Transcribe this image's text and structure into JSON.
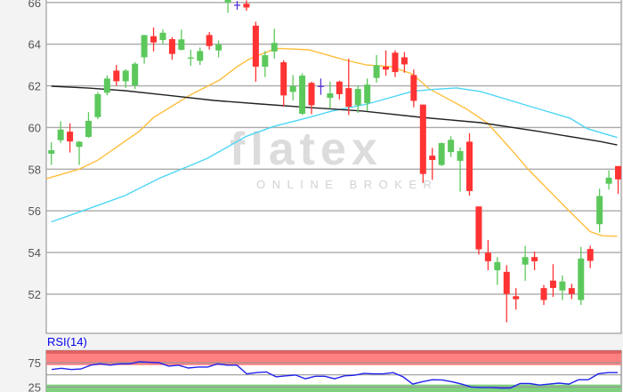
{
  "watermark": {
    "logo": "flatex",
    "tagline": "ONLINE BROKER"
  },
  "colors": {
    "up": "#5cc85c",
    "down": "#ff3333",
    "doji": "#5533dd",
    "ma_yellow": "#ffbe3c",
    "ma_cyan": "#4dd6f6",
    "ma_black": "#222222",
    "grid": "#aaaaaa",
    "rsi_line": "#2222ee",
    "rsi_overbought": "#ff8080",
    "rsi_oversold": "#7fd07f"
  },
  "chart_data": [
    {
      "type": "candlestick",
      "title": "",
      "ylim": [
        50.12,
        66.12
      ],
      "yticks": [
        "52",
        "54",
        "56",
        "58",
        "60",
        "62",
        "64",
        "66"
      ],
      "grid": true,
      "candles": [
        [
          58.74,
          59.3,
          58.2,
          58.91
        ],
        [
          59.39,
          60.3,
          59.26,
          59.9
        ],
        [
          59.8,
          60.2,
          58.8,
          59.33
        ],
        [
          59.07,
          59.35,
          58.2,
          59.32
        ],
        [
          59.55,
          60.74,
          59.5,
          60.32
        ],
        [
          60.5,
          61.7,
          60.4,
          61.6
        ],
        [
          61.67,
          62.5,
          61.55,
          62.35
        ],
        [
          62.73,
          63.0,
          62.0,
          62.22
        ],
        [
          62.22,
          62.8,
          61.9,
          62.73
        ],
        [
          62.02,
          63.13,
          61.85,
          63.06
        ],
        [
          63.37,
          64.44,
          63.06,
          64.44
        ],
        [
          64.38,
          64.8,
          63.65,
          64.08
        ],
        [
          64.2,
          64.7,
          64.0,
          64.55
        ],
        [
          64.24,
          64.34,
          63.25,
          63.53
        ],
        [
          63.73,
          64.7,
          63.7,
          64.23
        ],
        [
          63.33,
          63.73,
          62.96,
          63.36
        ],
        [
          63.2,
          63.84,
          63.0,
          63.67
        ],
        [
          64.44,
          64.58,
          63.74,
          63.91
        ],
        [
          63.7,
          64.17,
          63.37,
          63.98
        ],
        [
          66.0,
          66.4,
          65.5,
          66.2
        ],
        [
          65.9,
          66.07,
          65.65,
          65.9
        ],
        [
          65.94,
          66.1,
          65.6,
          65.76
        ],
        [
          64.89,
          65.08,
          62.2,
          62.92
        ],
        [
          62.92,
          63.67,
          62.42,
          63.47
        ],
        [
          63.65,
          64.74,
          63.31,
          64.06
        ],
        [
          63.13,
          63.23,
          61.0,
          61.54
        ],
        [
          61.71,
          62.52,
          61.3,
          61.99
        ],
        [
          60.66,
          62.6,
          60.6,
          62.49
        ],
        [
          62.14,
          62.2,
          60.64,
          61.07
        ],
        [
          62.0,
          62.35,
          61.57,
          62.0
        ],
        [
          61.42,
          62.2,
          60.93,
          61.64
        ],
        [
          62.2,
          62.25,
          61.35,
          61.6
        ],
        [
          61.89,
          63.3,
          60.6,
          61.0
        ],
        [
          61.07,
          62.02,
          60.7,
          61.85
        ],
        [
          61.17,
          62.35,
          60.79,
          62.06
        ],
        [
          62.38,
          63.48,
          62.16,
          62.99
        ],
        [
          62.92,
          63.7,
          62.49,
          62.78
        ],
        [
          63.59,
          63.7,
          62.42,
          62.66
        ],
        [
          63.37,
          63.62,
          62.63,
          63.03
        ],
        [
          62.52,
          62.78,
          60.97,
          61.28
        ],
        [
          61.1,
          61.1,
          57.34,
          57.77
        ],
        [
          58.65,
          59.02,
          57.49,
          58.44
        ],
        [
          58.2,
          59.28,
          58.15,
          59.25
        ],
        [
          58.82,
          59.58,
          58.58,
          59.41
        ],
        [
          58.4,
          59.04,
          56.92,
          58.87
        ],
        [
          59.32,
          59.72,
          56.73,
          56.95
        ],
        [
          56.21,
          56.21,
          53.9,
          54.15
        ],
        [
          53.99,
          54.6,
          53.15,
          53.58
        ],
        [
          53.15,
          53.78,
          52.44,
          53.54
        ],
        [
          53.07,
          53.39,
          50.65,
          52.01
        ],
        [
          51.9,
          52.29,
          51.26,
          51.76
        ],
        [
          53.42,
          54.32,
          52.64,
          53.78
        ],
        [
          53.78,
          54.04,
          53.15,
          53.58
        ],
        [
          52.29,
          52.44,
          51.48,
          51.72
        ],
        [
          52.65,
          53.44,
          51.87,
          52.3
        ],
        [
          52.18,
          52.9,
          51.71,
          52.61
        ],
        [
          52.29,
          52.5,
          51.76,
          52.01
        ],
        [
          51.72,
          54.27,
          51.48,
          53.71
        ],
        [
          54.17,
          54.32,
          53.25,
          53.6
        ],
        [
          55.36,
          57.06,
          54.96,
          56.71
        ],
        [
          57.3,
          57.94,
          57.02,
          57.59
        ],
        [
          58.15,
          58.15,
          56.81,
          57.51
        ]
      ],
      "candle_format": [
        "open",
        "high",
        "low",
        "close"
      ],
      "moving_averages": [
        {
          "color": "ma_yellow",
          "points": [
            [
              -0.55,
              57.54
            ],
            [
              3,
              58.0
            ],
            [
              5,
              58.43
            ],
            [
              9.5,
              59.83
            ],
            [
              11,
              60.48
            ],
            [
              14.9,
              61.55
            ],
            [
              18.1,
              62.28
            ],
            [
              20,
              62.92
            ],
            [
              21.2,
              63.26
            ],
            [
              23.5,
              63.68
            ],
            [
              24.5,
              63.8
            ],
            [
              27.7,
              63.73
            ],
            [
              31.8,
              63.22
            ],
            [
              33.9,
              63.0
            ],
            [
              36.5,
              62.92
            ],
            [
              38.8,
              62.58
            ],
            [
              40.7,
              61.85
            ],
            [
              44.6,
              60.91
            ],
            [
              46.9,
              60.23
            ],
            [
              49.4,
              58.99
            ],
            [
              51.3,
              58.0
            ],
            [
              55.8,
              55.96
            ],
            [
              58,
              55.0
            ],
            [
              59.3,
              54.8
            ],
            [
              60.9,
              54.78
            ]
          ]
        },
        {
          "color": "ma_cyan",
          "points": [
            [
              0,
              55.47
            ],
            [
              4,
              56.1
            ],
            [
              7.9,
              56.73
            ],
            [
              11.7,
              57.58
            ],
            [
              16.8,
              58.52
            ],
            [
              21,
              59.58
            ],
            [
              23.9,
              60.05
            ],
            [
              27.7,
              60.48
            ],
            [
              30.2,
              60.79
            ],
            [
              34,
              61.13
            ],
            [
              38.8,
              61.73
            ],
            [
              40.7,
              61.82
            ],
            [
              43.6,
              61.9
            ],
            [
              46.2,
              61.73
            ],
            [
              49.4,
              61.3
            ],
            [
              52.6,
              60.87
            ],
            [
              55.8,
              60.45
            ],
            [
              57.7,
              59.94
            ],
            [
              60.9,
              59.52
            ]
          ]
        },
        {
          "color": "ma_black",
          "points": [
            [
              0,
              61.98
            ],
            [
              4,
              61.89
            ],
            [
              7.9,
              61.77
            ],
            [
              12.4,
              61.55
            ],
            [
              17.5,
              61.3
            ],
            [
              22.5,
              61.13
            ],
            [
              27.7,
              60.96
            ],
            [
              33.5,
              60.79
            ],
            [
              39.8,
              60.49
            ],
            [
              46.2,
              60.23
            ],
            [
              52.6,
              59.8
            ],
            [
              59,
              59.33
            ],
            [
              60.9,
              59.16
            ]
          ]
        }
      ]
    },
    {
      "type": "line",
      "title": "RSI(14)",
      "yticks": [
        "75",
        "25"
      ],
      "ylim": [
        0,
        100
      ],
      "overbought_zone": [
        70,
        100
      ],
      "oversold_zone": [
        0,
        30
      ],
      "midline": 50,
      "values": [
        61,
        63.5,
        61,
        62,
        70,
        72.6,
        70,
        72.6,
        72.6,
        76.9,
        75.7,
        75,
        68,
        70,
        64,
        66,
        66,
        72.6,
        70,
        70,
        52,
        54.5,
        56,
        46,
        48,
        49.6,
        42,
        47,
        47,
        42,
        48,
        49,
        53,
        52,
        52,
        54.5,
        46,
        31,
        36,
        40,
        39.5,
        36,
        31,
        25,
        24,
        24,
        23,
        23,
        32,
        32,
        29,
        31,
        33,
        31,
        40,
        40,
        52,
        54.5,
        54.5
      ]
    }
  ]
}
